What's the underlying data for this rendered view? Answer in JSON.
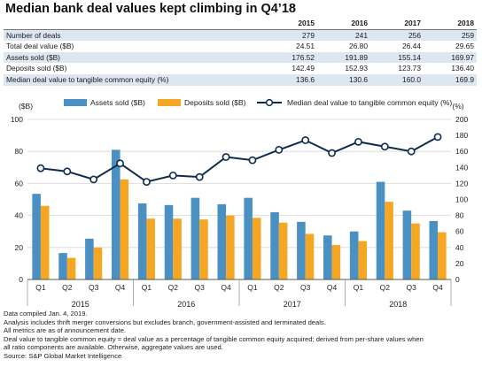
{
  "title": "Median bank deal values kept climbing in Q4’18",
  "summary_table": {
    "years": [
      "2015",
      "2016",
      "2017",
      "2018"
    ],
    "rows": [
      {
        "label": "Number of deals",
        "values": [
          "279",
          "241",
          "256",
          "259"
        ]
      },
      {
        "label": "Total deal value ($B)",
        "values": [
          "24.51",
          "26.80",
          "26.44",
          "29.65"
        ]
      },
      {
        "label": "Assets sold ($B)",
        "values": [
          "176.52",
          "191.89",
          "155.14",
          "169.97"
        ]
      },
      {
        "label": "Deposits sold ($B)",
        "values": [
          "142.49",
          "152.93",
          "123.73",
          "136.40"
        ]
      },
      {
        "label": "Median deal value to tangible common equity (%)",
        "values": [
          "136.6",
          "130.6",
          "160.0",
          "169.9"
        ]
      }
    ]
  },
  "chart_data": {
    "type": "bar",
    "categories": [
      "Q1",
      "Q2",
      "Q3",
      "Q4",
      "Q1",
      "Q2",
      "Q3",
      "Q4",
      "Q1",
      "Q2",
      "Q3",
      "Q4",
      "Q1",
      "Q2",
      "Q3",
      "Q4"
    ],
    "year_groups": [
      "2015",
      "2016",
      "2017",
      "2018"
    ],
    "series": [
      {
        "name": "Assets sold ($B)",
        "type": "bar",
        "axis": "left",
        "color": "#4a90c2",
        "values": [
          53.5,
          16.5,
          25.5,
          81.0,
          47.5,
          46.5,
          51.0,
          47.0,
          51.0,
          42.0,
          36.0,
          27.5,
          30.0,
          61.0,
          43.0,
          36.5
        ]
      },
      {
        "name": "Deposits sold ($B)",
        "type": "bar",
        "axis": "left",
        "color": "#f5a623",
        "values": [
          46.0,
          13.5,
          20.0,
          62.5,
          38.0,
          38.0,
          37.5,
          40.0,
          38.5,
          35.5,
          28.5,
          21.5,
          24.0,
          48.5,
          35.0,
          29.5
        ]
      },
      {
        "name": "Median deal value to tangible common equity (%)",
        "type": "line",
        "axis": "right",
        "color": "#0d2b4e",
        "values": [
          139,
          135,
          125,
          145,
          122,
          130,
          128,
          153,
          149,
          162,
          174,
          158,
          172,
          166,
          160,
          178
        ]
      }
    ],
    "ylabel_left": "($B)",
    "ylabel_right": "(%)",
    "ylim_left": [
      0,
      100
    ],
    "ylim_right": [
      0,
      200
    ],
    "yticks_left": [
      "0",
      "20",
      "40",
      "60",
      "80",
      "100"
    ],
    "yticks_right": [
      "0",
      "20",
      "40",
      "60",
      "80",
      "100",
      "120",
      "140",
      "160",
      "180",
      "200"
    ],
    "grid": true,
    "legend": "top"
  },
  "notes": [
    "Data compiled Jan. 4, 2019.",
    "Analysis includes thrift merger conversions but excludes branch, government-assisted and terminated deals.",
    "All metrics are as of announcement date.",
    "Deal value to tangible common equity = deal value as a percentage of tangible common equity acquired; derived from per-share values when",
    "all ratio components are available. Otherwise, aggregate values are used.",
    "Source: S&P Global Market Intelligence"
  ]
}
